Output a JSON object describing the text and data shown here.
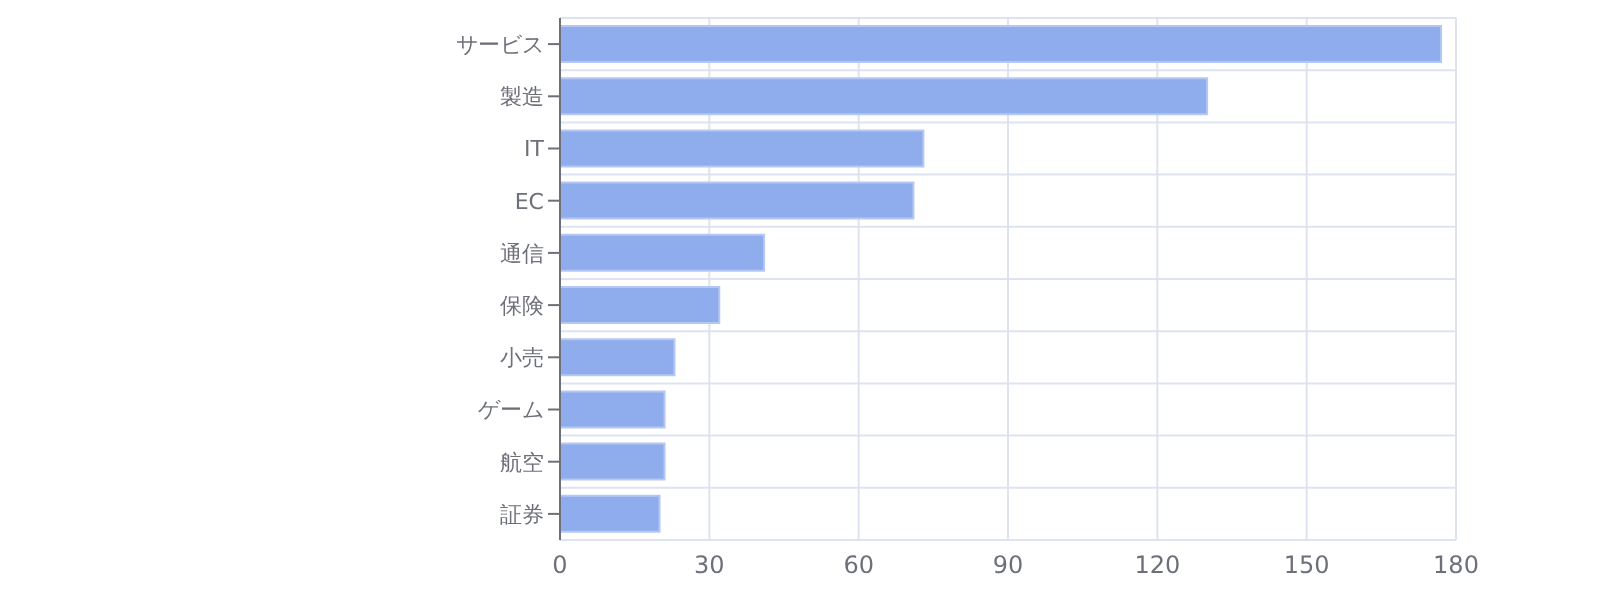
{
  "chart_data": {
    "type": "bar",
    "orientation": "horizontal",
    "categories": [
      "サービス",
      "製造",
      "IT",
      "EC",
      "通信",
      "保険",
      "小売",
      "ゲーム",
      "航空",
      "証券"
    ],
    "values": [
      177,
      130,
      73,
      71,
      41,
      32,
      23,
      21,
      21,
      20
    ],
    "color": "#8fadec",
    "xlim": [
      0,
      180
    ],
    "xticks": [
      0,
      30,
      60,
      90,
      120,
      150,
      180
    ],
    "grid": true
  }
}
